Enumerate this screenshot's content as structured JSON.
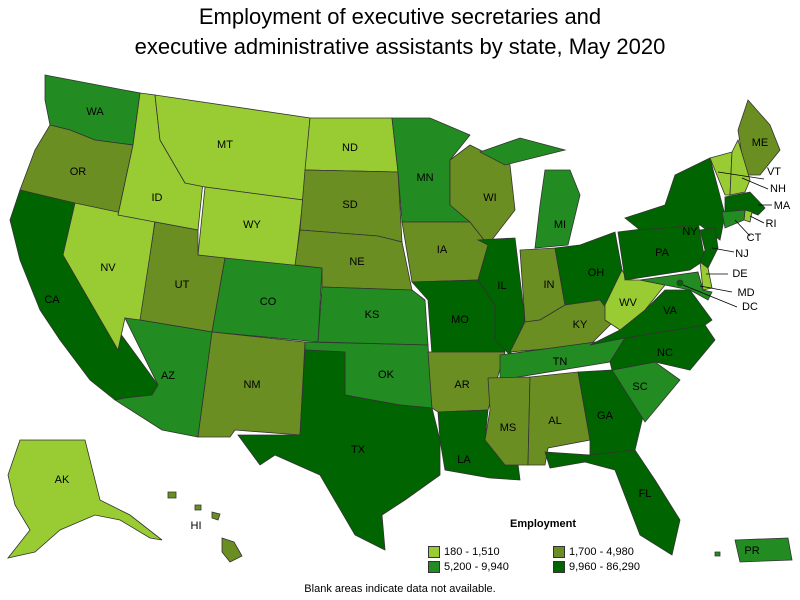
{
  "title_lines": [
    "Employment of executive secretaries and",
    "executive administrative assistants by state, May 2020"
  ],
  "legend": {
    "title": "Employment",
    "items": [
      {
        "label": "180 - 1,510",
        "color": "#99cc33"
      },
      {
        "label": "1,700 - 4,980",
        "color": "#6b8e23"
      },
      {
        "label": "5,200 - 9,940",
        "color": "#228b22"
      },
      {
        "label": "9,960 - 86,290",
        "color": "#006400"
      }
    ]
  },
  "note": "Blank areas indicate data not available.",
  "states": [
    {
      "abbr": "WA",
      "tier": 2
    },
    {
      "abbr": "OR",
      "tier": 1
    },
    {
      "abbr": "CA",
      "tier": 3
    },
    {
      "abbr": "NV",
      "tier": 0
    },
    {
      "abbr": "ID",
      "tier": 0
    },
    {
      "abbr": "MT",
      "tier": 0
    },
    {
      "abbr": "WY",
      "tier": 0
    },
    {
      "abbr": "UT",
      "tier": 1
    },
    {
      "abbr": "AZ",
      "tier": 2
    },
    {
      "abbr": "CO",
      "tier": 2
    },
    {
      "abbr": "NM",
      "tier": 1
    },
    {
      "abbr": "ND",
      "tier": 0
    },
    {
      "abbr": "SD",
      "tier": 1
    },
    {
      "abbr": "NE",
      "tier": 1
    },
    {
      "abbr": "KS",
      "tier": 2
    },
    {
      "abbr": "OK",
      "tier": 2
    },
    {
      "abbr": "TX",
      "tier": 3
    },
    {
      "abbr": "MN",
      "tier": 2
    },
    {
      "abbr": "IA",
      "tier": 1
    },
    {
      "abbr": "MO",
      "tier": 3
    },
    {
      "abbr": "AR",
      "tier": 1
    },
    {
      "abbr": "LA",
      "tier": 3
    },
    {
      "abbr": "WI",
      "tier": 1
    },
    {
      "abbr": "IL",
      "tier": 3
    },
    {
      "abbr": "MI",
      "tier": 2
    },
    {
      "abbr": "IN",
      "tier": 1
    },
    {
      "abbr": "OH",
      "tier": 3
    },
    {
      "abbr": "KY",
      "tier": 1
    },
    {
      "abbr": "TN",
      "tier": 2
    },
    {
      "abbr": "MS",
      "tier": 1
    },
    {
      "abbr": "AL",
      "tier": 1
    },
    {
      "abbr": "GA",
      "tier": 3
    },
    {
      "abbr": "FL",
      "tier": 3
    },
    {
      "abbr": "SC",
      "tier": 2
    },
    {
      "abbr": "NC",
      "tier": 3
    },
    {
      "abbr": "VA",
      "tier": 3
    },
    {
      "abbr": "WV",
      "tier": 0
    },
    {
      "abbr": "PA",
      "tier": 3
    },
    {
      "abbr": "NY",
      "tier": 3
    },
    {
      "abbr": "ME",
      "tier": 1
    },
    {
      "abbr": "VT",
      "tier": 0
    },
    {
      "abbr": "NH",
      "tier": 0
    },
    {
      "abbr": "MA",
      "tier": 3
    },
    {
      "abbr": "RI",
      "tier": 0
    },
    {
      "abbr": "CT",
      "tier": 2
    },
    {
      "abbr": "NJ",
      "tier": 3
    },
    {
      "abbr": "DE",
      "tier": 0
    },
    {
      "abbr": "MD",
      "tier": 2
    },
    {
      "abbr": "DC",
      "tier": 3
    },
    {
      "abbr": "AK",
      "tier": 0
    },
    {
      "abbr": "HI",
      "tier": 1
    },
    {
      "abbr": "PR",
      "tier": 2
    }
  ]
}
